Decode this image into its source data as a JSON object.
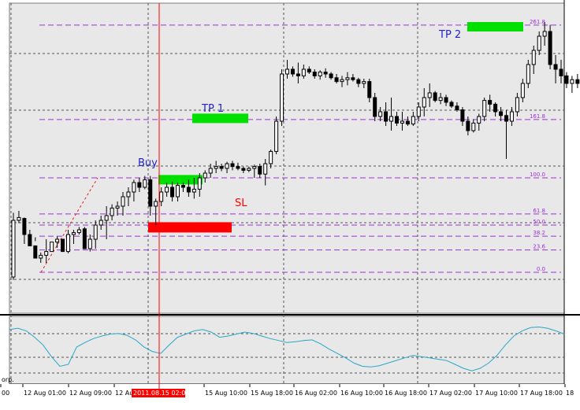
{
  "window": {
    "pane_label": "orp."
  },
  "colors": {
    "bull_candle": "#ffffff",
    "bear_candle": "#000000",
    "fib_level": "#9b30d9",
    "entry_zone": "#00e000",
    "stop_zone": "#ff0000",
    "zone_text": "#2222cc",
    "indicator": "#2aa6c8",
    "time_marker": "#ff0000"
  },
  "annotations": {
    "buy": "Buy",
    "tp1": "TP 1",
    "tp2": "TP 2",
    "sl": "SL"
  },
  "fib_levels": [
    {
      "label": "261.8",
      "price": 261.8
    },
    {
      "label": "161.8",
      "price": 161.8
    },
    {
      "label": "100.0",
      "price": 100.0
    },
    {
      "label": "61.8",
      "price": 61.8
    },
    {
      "label": "50.0",
      "price": 50.0
    },
    {
      "label": "38.2",
      "price": 38.2
    },
    {
      "label": "23.6",
      "price": 23.6
    },
    {
      "label": "0.0",
      "price": 0.0
    }
  ],
  "time_axis": {
    "labels": [
      "00",
      "12 Aug 01:00",
      "12 Aug 09:00",
      "12 Au",
      "15 Aug 10:00",
      "15 Aug 18:00",
      "16 Aug 02:00",
      "16 Aug 10:00",
      "16 Aug 18:00",
      "17 Aug 02:00",
      "17 Aug 10:00",
      "17 Aug 18:00",
      "18"
    ],
    "highlighted": "2011.08.15 02:00"
  },
  "chart_data": {
    "type": "candlestick",
    "price_scale": "fib_percent",
    "candles": [
      [
        -5,
        -8,
        63,
        55
      ],
      [
        55,
        52,
        65,
        58
      ],
      [
        57,
        58,
        30,
        40
      ],
      [
        40,
        40,
        45,
        28
      ],
      [
        28,
        33,
        37,
        15
      ],
      [
        15,
        10,
        21,
        18
      ],
      [
        18,
        10,
        35,
        22
      ],
      [
        22,
        27,
        25,
        32
      ],
      [
        32,
        38,
        26,
        35
      ],
      [
        35,
        28,
        24,
        22
      ],
      [
        22,
        20,
        45,
        40
      ],
      [
        40,
        30,
        45,
        42
      ],
      [
        42,
        40,
        48,
        45
      ],
      [
        46,
        30,
        48,
        25
      ],
      [
        25,
        22,
        40,
        35
      ],
      [
        35,
        25,
        55,
        50
      ],
      [
        50,
        45,
        60,
        55
      ],
      [
        55,
        35,
        70,
        60
      ],
      [
        60,
        55,
        72,
        68
      ],
      [
        68,
        60,
        75,
        70
      ],
      [
        70,
        60,
        85,
        80
      ],
      [
        80,
        70,
        90,
        85
      ],
      [
        85,
        75,
        98,
        95
      ],
      [
        95,
        85,
        100,
        90
      ],
      [
        90,
        88,
        102,
        98
      ],
      [
        98,
        60,
        102,
        70
      ],
      [
        70,
        50,
        78,
        75
      ],
      [
        75,
        70,
        90,
        85
      ],
      [
        85,
        80,
        95,
        90
      ],
      [
        90,
        75,
        96,
        80
      ],
      [
        80,
        75,
        95,
        92
      ],
      [
        92,
        85,
        95,
        90
      ],
      [
        90,
        80,
        98,
        85
      ],
      [
        85,
        78,
        100,
        88
      ],
      [
        88,
        80,
        105,
        100
      ],
      [
        100,
        95,
        108,
        105
      ],
      [
        105,
        100,
        115,
        110
      ],
      [
        110,
        105,
        118,
        112
      ],
      [
        112,
        107,
        115,
        110
      ],
      [
        110,
        105,
        117,
        115
      ],
      [
        115,
        108,
        118,
        112
      ],
      [
        112,
        108,
        116,
        110
      ],
      [
        110,
        105,
        112,
        108
      ],
      [
        108,
        106,
        112,
        110
      ],
      [
        110,
        100,
        114,
        112
      ],
      [
        112,
        100,
        115,
        104
      ],
      [
        104,
        92,
        120,
        115
      ],
      [
        115,
        110,
        130,
        128
      ],
      [
        128,
        125,
        165,
        160
      ],
      [
        160,
        155,
        215,
        210
      ],
      [
        210,
        205,
        225,
        215
      ],
      [
        215,
        207,
        218,
        210
      ],
      [
        210,
        200,
        222,
        208
      ],
      [
        208,
        205,
        220,
        215
      ],
      [
        215,
        210,
        218,
        212
      ],
      [
        212,
        205,
        215,
        208
      ],
      [
        208,
        204,
        214,
        212
      ],
      [
        212,
        206,
        216,
        210
      ],
      [
        210,
        204,
        212,
        206
      ],
      [
        206,
        200,
        210,
        202
      ],
      [
        202,
        196,
        208,
        204
      ],
      [
        204,
        198,
        212,
        206
      ],
      [
        206,
        202,
        210,
        204
      ],
      [
        204,
        196,
        206,
        200
      ],
      [
        200,
        195,
        205,
        202
      ],
      [
        202,
        180,
        205,
        185
      ],
      [
        185,
        160,
        190,
        165
      ],
      [
        165,
        160,
        175,
        170
      ],
      [
        170,
        155,
        180,
        160
      ],
      [
        160,
        150,
        185,
        165
      ],
      [
        165,
        155,
        170,
        158
      ],
      [
        158,
        150,
        170,
        160
      ],
      [
        160,
        155,
        165,
        157
      ],
      [
        157,
        155,
        170,
        165
      ],
      [
        165,
        160,
        180,
        175
      ],
      [
        175,
        165,
        195,
        185
      ],
      [
        185,
        175,
        200,
        190
      ],
      [
        190,
        180,
        192,
        182
      ],
      [
        182,
        178,
        190,
        185
      ],
      [
        185,
        176,
        188,
        180
      ],
      [
        180,
        174,
        182,
        176
      ],
      [
        176,
        170,
        180,
        172
      ],
      [
        172,
        155,
        175,
        160
      ],
      [
        160,
        145,
        165,
        150
      ],
      [
        150,
        148,
        162,
        158
      ],
      [
        158,
        150,
        168,
        165
      ],
      [
        165,
        160,
        185,
        182
      ],
      [
        182,
        170,
        188,
        178
      ],
      [
        178,
        165,
        180,
        170
      ],
      [
        170,
        160,
        175,
        166
      ],
      [
        166,
        120,
        172,
        160
      ],
      [
        160,
        155,
        175,
        170
      ],
      [
        170,
        165,
        190,
        185
      ],
      [
        185,
        180,
        205,
        200
      ],
      [
        200,
        195,
        225,
        220
      ],
      [
        220,
        210,
        240,
        235
      ],
      [
        235,
        230,
        255,
        250
      ],
      [
        250,
        240,
        265,
        255
      ],
      [
        255,
        215,
        262,
        220
      ],
      [
        220,
        200,
        230,
        215
      ],
      [
        215,
        200,
        225,
        208
      ],
      [
        208,
        195,
        212,
        200
      ],
      [
        200,
        190,
        208,
        204
      ],
      [
        204,
        195,
        210,
        200
      ],
      [
        200,
        190,
        205,
        198
      ]
    ],
    "indicator_values": [
      82,
      84,
      80,
      70,
      58,
      40,
      25,
      28,
      55,
      62,
      68,
      72,
      75,
      76,
      73,
      66,
      55,
      48,
      45,
      58,
      70,
      75,
      80,
      82,
      78,
      70,
      72,
      75,
      78,
      76,
      72,
      68,
      65,
      62,
      63,
      65,
      66,
      60,
      52,
      45,
      38,
      30,
      25,
      24,
      26,
      30,
      34,
      38,
      42,
      40,
      38,
      36,
      34,
      28,
      22,
      18,
      22,
      30,
      42,
      58,
      72,
      80,
      85,
      86,
      84,
      80,
      75
    ]
  }
}
